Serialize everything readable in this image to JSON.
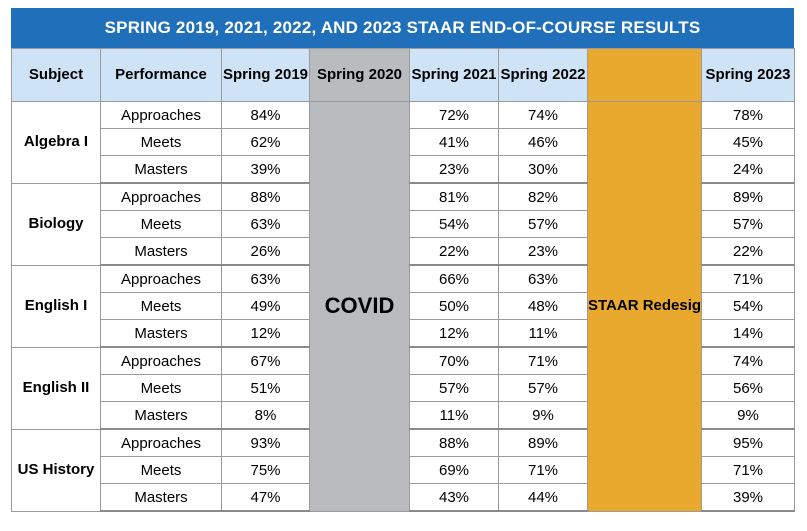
{
  "title": "SPRING 2019, 2021, 2022, AND 2023 STAAR END-OF-COURSE RESULTS",
  "headers": {
    "subject": "Subject",
    "performance": "Performance",
    "y2019": "Spring 2019",
    "y2020": "Spring 2020",
    "y2021": "Spring 2021",
    "y2022": "Spring 2022",
    "y2023": "Spring 2023"
  },
  "covid_label": "COVID",
  "redesign_label": "STAAR Redesign*",
  "subjects": [
    {
      "name": "Algebra I",
      "rows": [
        {
          "level": "Approaches",
          "y2019": "84%",
          "y2021": "72%",
          "y2022": "74%",
          "y2023": "78%"
        },
        {
          "level": "Meets",
          "y2019": "62%",
          "y2021": "41%",
          "y2022": "46%",
          "y2023": "45%"
        },
        {
          "level": "Masters",
          "y2019": "39%",
          "y2021": "23%",
          "y2022": "30%",
          "y2023": "24%"
        }
      ]
    },
    {
      "name": "Biology",
      "rows": [
        {
          "level": "Approaches",
          "y2019": "88%",
          "y2021": "81%",
          "y2022": "82%",
          "y2023": "89%"
        },
        {
          "level": "Meets",
          "y2019": "63%",
          "y2021": "54%",
          "y2022": "57%",
          "y2023": "57%"
        },
        {
          "level": "Masters",
          "y2019": "26%",
          "y2021": "22%",
          "y2022": "23%",
          "y2023": "22%"
        }
      ]
    },
    {
      "name": "English I",
      "rows": [
        {
          "level": "Approaches",
          "y2019": "63%",
          "y2021": "66%",
          "y2022": "63%",
          "y2023": "71%"
        },
        {
          "level": "Meets",
          "y2019": "49%",
          "y2021": "50%",
          "y2022": "48%",
          "y2023": "54%"
        },
        {
          "level": "Masters",
          "y2019": "12%",
          "y2021": "12%",
          "y2022": "11%",
          "y2023": "14%"
        }
      ]
    },
    {
      "name": "English II",
      "rows": [
        {
          "level": "Approaches",
          "y2019": "67%",
          "y2021": "70%",
          "y2022": "71%",
          "y2023": "74%"
        },
        {
          "level": "Meets",
          "y2019": "51%",
          "y2021": "57%",
          "y2022": "57%",
          "y2023": "56%"
        },
        {
          "level": "Masters",
          "y2019": "8%",
          "y2021": "11%",
          "y2022": "9%",
          "y2023": "9%"
        }
      ]
    },
    {
      "name": "US History",
      "rows": [
        {
          "level": "Approaches",
          "y2019": "93%",
          "y2021": "88%",
          "y2022": "89%",
          "y2023": "95%"
        },
        {
          "level": "Meets",
          "y2019": "75%",
          "y2021": "69%",
          "y2022": "71%",
          "y2023": "71%"
        },
        {
          "level": "Masters",
          "y2019": "47%",
          "y2021": "43%",
          "y2022": "44%",
          "y2023": "39%"
        }
      ]
    }
  ],
  "colors": {
    "title_bg": "#1f6fba",
    "header_bg": "#cfe3f6",
    "covid_bg": "#b9bcbf",
    "redesign_bg": "#e9a92f"
  }
}
